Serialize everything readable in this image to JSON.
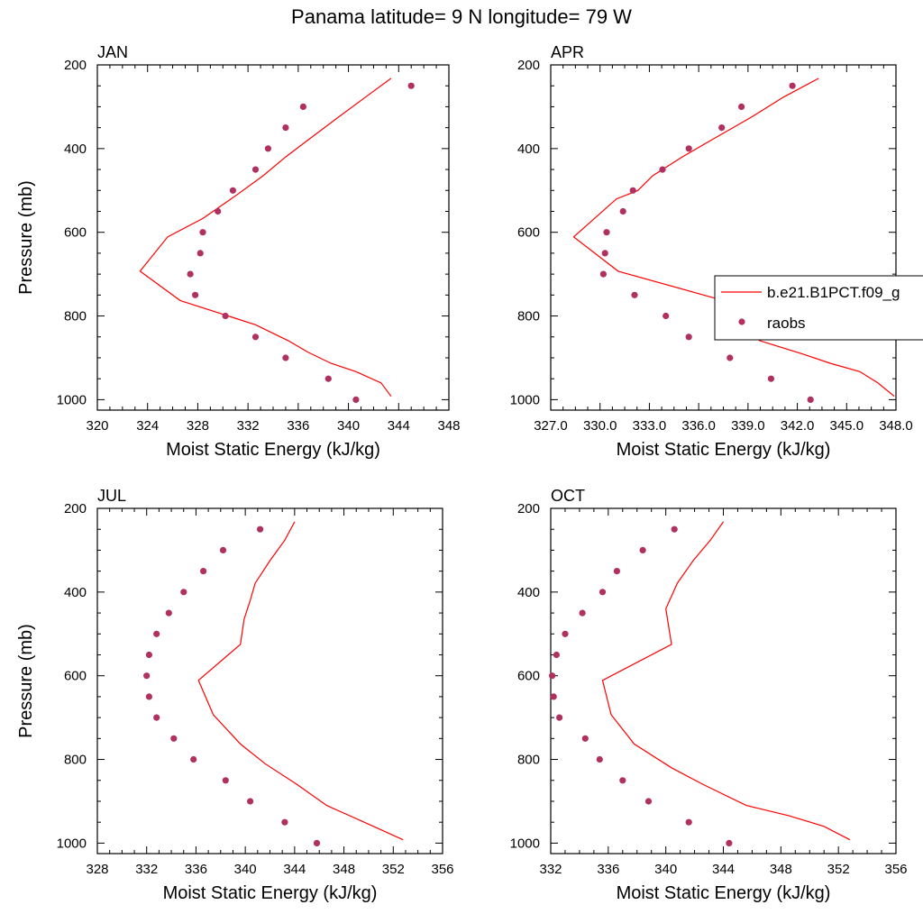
{
  "title": "Panama  latitude= 9 N longitude= 79 W",
  "colors": {
    "model": "#ff0000",
    "obs": "#b03060",
    "axis": "#000000"
  },
  "legend": {
    "placement": "right of APR panel",
    "entries": [
      {
        "label": "b.e21.B1PCT.f09_g",
        "style": "line"
      },
      {
        "label": "raobs",
        "style": "marker"
      }
    ]
  },
  "chart_data": [
    {
      "type": "line",
      "panel_label": "JAN",
      "xlabel": "Moist Static Energy (kJ/kg)",
      "ylabel": "Pressure (mb)",
      "xlim": [
        320,
        348
      ],
      "ylim": [
        1025,
        200
      ],
      "xticks": [
        "320",
        "324",
        "328",
        "332",
        "336",
        "340",
        "344",
        "348"
      ],
      "yticks": [
        "200",
        "400",
        "600",
        "800",
        "1000"
      ],
      "series": [
        {
          "name": "b.e21.B1PCT.f09_g",
          "kind": "line",
          "points": [
            [
              343.4,
              232
            ],
            [
              341.4,
              276
            ],
            [
              339.2,
              325
            ],
            [
              336.8,
              379
            ],
            [
              335.0,
              420
            ],
            [
              333.2,
              465
            ],
            [
              331.0,
              513
            ],
            [
              328.4,
              567
            ],
            [
              325.6,
              611
            ],
            [
              323.4,
              693
            ],
            [
              326.6,
              763
            ],
            [
              332.6,
              821
            ],
            [
              335.2,
              859
            ],
            [
              336.8,
              887
            ],
            [
              338.6,
              913
            ],
            [
              340.6,
              933
            ],
            [
              342.6,
              960
            ],
            [
              343.4,
              992
            ]
          ]
        },
        {
          "name": "raobs",
          "kind": "scatter",
          "points": [
            [
              345.0,
              250
            ],
            [
              336.4,
              300
            ],
            [
              335.0,
              350
            ],
            [
              333.6,
              400
            ],
            [
              332.6,
              450
            ],
            [
              330.8,
              500
            ],
            [
              329.6,
              550
            ],
            [
              328.4,
              600
            ],
            [
              328.2,
              650
            ],
            [
              327.4,
              700
            ],
            [
              327.8,
              750
            ],
            [
              330.2,
              800
            ],
            [
              332.6,
              850
            ],
            [
              335.0,
              900
            ],
            [
              338.4,
              950
            ],
            [
              340.6,
              1000
            ]
          ]
        }
      ]
    },
    {
      "type": "line",
      "panel_label": "APR",
      "xlabel": "Moist Static Energy (kJ/kg)",
      "ylabel": "",
      "xlim": [
        327,
        348
      ],
      "ylim": [
        1025,
        200
      ],
      "xticks": [
        "327.0",
        "330.0",
        "333.0",
        "336.0",
        "339.0",
        "342.0",
        "345.0",
        "348.0"
      ],
      "yticks": [
        "200",
        "400",
        "600",
        "800",
        "1000"
      ],
      "series": [
        {
          "name": "b.e21.B1PCT.f09_g",
          "kind": "line",
          "points": [
            [
              343.3,
              232
            ],
            [
              341.2,
              276
            ],
            [
              339.2,
              325
            ],
            [
              336.8,
              379
            ],
            [
              335.0,
              420
            ],
            [
              333.2,
              465
            ],
            [
              332.3,
              500
            ],
            [
              331.0,
              520
            ],
            [
              328.4,
              611
            ],
            [
              331.1,
              693
            ],
            [
              337.5,
              763
            ],
            [
              338.7,
              813
            ],
            [
              339.7,
              859
            ],
            [
              342.1,
              888
            ],
            [
              344.0,
              913
            ],
            [
              345.8,
              933
            ],
            [
              346.9,
              960
            ],
            [
              347.9,
              992
            ]
          ]
        },
        {
          "name": "raobs",
          "kind": "scatter",
          "points": [
            [
              341.7,
              250
            ],
            [
              338.6,
              300
            ],
            [
              337.4,
              350
            ],
            [
              335.4,
              400
            ],
            [
              333.8,
              450
            ],
            [
              332.0,
              500
            ],
            [
              331.4,
              550
            ],
            [
              330.4,
              600
            ],
            [
              330.3,
              650
            ],
            [
              330.2,
              700
            ],
            [
              332.1,
              750
            ],
            [
              334.0,
              800
            ],
            [
              335.4,
              850
            ],
            [
              337.9,
              900
            ],
            [
              340.4,
              950
            ],
            [
              342.8,
              1000
            ]
          ]
        }
      ]
    },
    {
      "type": "line",
      "panel_label": "JUL",
      "xlabel": "Moist Static Energy (kJ/kg)",
      "ylabel": "Pressure (mb)",
      "xlim": [
        328,
        356
      ],
      "ylim": [
        1025,
        200
      ],
      "xticks": [
        "328",
        "332",
        "336",
        "340",
        "344",
        "348",
        "352",
        "356"
      ],
      "yticks": [
        "200",
        "400",
        "600",
        "800",
        "1000"
      ],
      "series": [
        {
          "name": "b.e21.B1PCT.f09_g",
          "kind": "line",
          "points": [
            [
              344.0,
              232
            ],
            [
              343.2,
              276
            ],
            [
              342.0,
              325
            ],
            [
              340.8,
              379
            ],
            [
              340.4,
              420
            ],
            [
              339.9,
              465
            ],
            [
              339.6,
              525
            ],
            [
              336.2,
              611
            ],
            [
              337.4,
              693
            ],
            [
              339.6,
              763
            ],
            [
              341.6,
              810
            ],
            [
              344.2,
              860
            ],
            [
              346.6,
              910
            ],
            [
              350.4,
              960
            ],
            [
              352.8,
              992
            ]
          ]
        },
        {
          "name": "raobs",
          "kind": "scatter",
          "points": [
            [
              341.2,
              250
            ],
            [
              338.2,
              300
            ],
            [
              336.6,
              350
            ],
            [
              335.0,
              400
            ],
            [
              333.8,
              450
            ],
            [
              332.8,
              500
            ],
            [
              332.2,
              550
            ],
            [
              332.0,
              600
            ],
            [
              332.2,
              650
            ],
            [
              332.8,
              700
            ],
            [
              334.2,
              750
            ],
            [
              335.8,
              800
            ],
            [
              338.4,
              850
            ],
            [
              340.4,
              900
            ],
            [
              343.2,
              950
            ],
            [
              345.8,
              1000
            ]
          ]
        }
      ]
    },
    {
      "type": "line",
      "panel_label": "OCT",
      "xlabel": "Moist Static Energy (kJ/kg)",
      "ylabel": "",
      "xlim": [
        332,
        356
      ],
      "ylim": [
        1025,
        200
      ],
      "xticks": [
        "332",
        "336",
        "340",
        "344",
        "348",
        "352",
        "356"
      ],
      "yticks": [
        "200",
        "400",
        "600",
        "800",
        "1000"
      ],
      "series": [
        {
          "name": "b.e21.B1PCT.f09_g",
          "kind": "line",
          "points": [
            [
              344.0,
              232
            ],
            [
              343.1,
              276
            ],
            [
              341.9,
              325
            ],
            [
              340.8,
              379
            ],
            [
              340.0,
              440
            ],
            [
              340.4,
              525
            ],
            [
              335.6,
              611
            ],
            [
              336.2,
              693
            ],
            [
              337.8,
              763
            ],
            [
              340.4,
              820
            ],
            [
              342.6,
              860
            ],
            [
              345.6,
              910
            ],
            [
              348.6,
              935
            ],
            [
              351.0,
              960
            ],
            [
              352.8,
              992
            ]
          ]
        },
        {
          "name": "raobs",
          "kind": "scatter",
          "points": [
            [
              340.6,
              250
            ],
            [
              338.4,
              300
            ],
            [
              336.6,
              350
            ],
            [
              335.6,
              400
            ],
            [
              334.2,
              450
            ],
            [
              333.0,
              500
            ],
            [
              332.4,
              550
            ],
            [
              332.1,
              600
            ],
            [
              332.2,
              650
            ],
            [
              332.6,
              700
            ],
            [
              334.4,
              750
            ],
            [
              335.4,
              800
            ],
            [
              337.0,
              850
            ],
            [
              338.8,
              900
            ],
            [
              341.6,
              950
            ],
            [
              344.4,
              1000
            ]
          ]
        }
      ]
    }
  ]
}
